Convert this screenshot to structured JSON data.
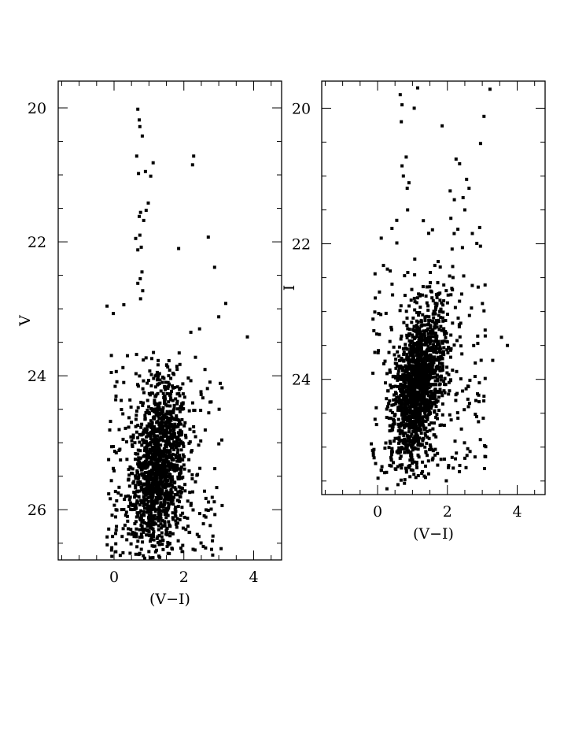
{
  "chart_data": [
    {
      "type": "scatter",
      "id": "left",
      "xlabel": "(V−I)",
      "ylabel": "V",
      "xlim": [
        -1.6,
        4.8
      ],
      "ylim": [
        26.75,
        19.6
      ],
      "y_inverted": true,
      "grid": false,
      "x_ticks": [
        0,
        2,
        4
      ],
      "y_ticks": [
        20,
        22,
        24,
        26
      ],
      "x_minor_step": 0.5,
      "y_minor_step": 0.5,
      "bright_points": [
        [
          0.68,
          20.02
        ],
        [
          0.72,
          20.18
        ],
        [
          0.74,
          20.28
        ],
        [
          0.81,
          20.42
        ],
        [
          0.65,
          20.72
        ],
        [
          1.12,
          20.82
        ],
        [
          0.9,
          20.95
        ],
        [
          0.7,
          20.98
        ],
        [
          1.05,
          21.02
        ],
        [
          0.98,
          21.42
        ],
        [
          0.92,
          21.53
        ],
        [
          0.76,
          21.56
        ],
        [
          0.85,
          21.68
        ],
        [
          0.72,
          21.62
        ],
        [
          0.62,
          21.95
        ],
        [
          0.74,
          21.9
        ],
        [
          0.68,
          22.12
        ],
        [
          0.78,
          22.08
        ],
        [
          2.28,
          20.72
        ],
        [
          2.25,
          20.85
        ],
        [
          1.85,
          22.1
        ],
        [
          2.7,
          21.93
        ],
        [
          2.88,
          22.38
        ],
        [
          0.8,
          22.45
        ],
        [
          0.75,
          22.55
        ],
        [
          0.68,
          22.62
        ],
        [
          0.82,
          22.73
        ],
        [
          0.76,
          22.85
        ],
        [
          -0.2,
          22.96
        ],
        [
          0.28,
          22.94
        ],
        [
          -0.02,
          23.07
        ],
        [
          3.2,
          22.92
        ],
        [
          3.0,
          23.12
        ],
        [
          3.82,
          23.42
        ],
        [
          2.45,
          23.3
        ],
        [
          2.2,
          23.35
        ]
      ],
      "cloud": {
        "seed": 11,
        "count": 1350,
        "cx": 1.28,
        "cy": 25.35,
        "sx": 0.36,
        "sy": 0.6,
        "slope": -0.45
      },
      "tail": {
        "seed": 23,
        "count": 260,
        "x": [
          -0.2,
          3.1
        ],
        "y": [
          23.5,
          26.7
        ]
      }
    },
    {
      "type": "scatter",
      "id": "right",
      "xlabel": "(V−I)",
      "ylabel": "I",
      "xlim": [
        -1.6,
        4.8
      ],
      "ylim": [
        25.7,
        19.6
      ],
      "y_inverted": true,
      "grid": false,
      "x_ticks": [
        0,
        2,
        4
      ],
      "y_ticks": [
        20,
        22,
        24
      ],
      "x_minor_step": 0.5,
      "y_minor_step": 0.5,
      "bright_points": [
        [
          0.65,
          19.8
        ],
        [
          1.15,
          19.7
        ],
        [
          0.7,
          19.95
        ],
        [
          1.05,
          20.0
        ],
        [
          3.22,
          19.72
        ],
        [
          0.68,
          20.2
        ],
        [
          1.85,
          20.26
        ],
        [
          3.05,
          20.12
        ],
        [
          0.82,
          20.72
        ],
        [
          0.7,
          20.85
        ],
        [
          0.74,
          21.0
        ],
        [
          0.9,
          21.1
        ],
        [
          0.85,
          21.18
        ],
        [
          2.95,
          20.52
        ],
        [
          2.25,
          20.75
        ],
        [
          2.35,
          20.82
        ],
        [
          2.55,
          21.05
        ],
        [
          2.62,
          21.18
        ],
        [
          2.45,
          21.32
        ],
        [
          2.08,
          21.22
        ],
        [
          2.2,
          21.35
        ],
        [
          2.5,
          21.5
        ],
        [
          0.86,
          21.5
        ],
        [
          3.72,
          23.5
        ],
        [
          3.55,
          23.38
        ],
        [
          3.05,
          24.25
        ],
        [
          3.3,
          23.72
        ]
      ],
      "cloud": {
        "seed": 37,
        "count": 1500,
        "cx": 1.18,
        "cy": 24.05,
        "sx": 0.34,
        "sy": 0.55,
        "slope": -0.8
      },
      "tail": {
        "seed": 51,
        "count": 260,
        "x": [
          -0.2,
          3.1
        ],
        "y": [
          21.5,
          25.5
        ]
      }
    }
  ]
}
